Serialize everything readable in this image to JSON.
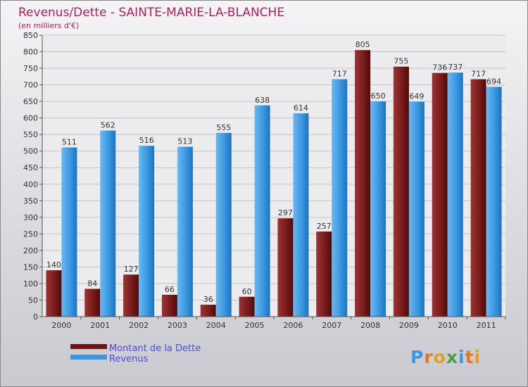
{
  "chart_data": {
    "type": "bar",
    "title": "Revenus/Dette - SAINTE-MARIE-LA-BLANCHE",
    "subtitle": "(en milliers d'€)",
    "categories": [
      "2000",
      "2001",
      "2002",
      "2003",
      "2004",
      "2005",
      "2006",
      "2007",
      "2008",
      "2009",
      "2010",
      "2011"
    ],
    "series": [
      {
        "name": "Montant de la Dette",
        "values": [
          140,
          84,
          127,
          66,
          36,
          60,
          297,
          257,
          805,
          755,
          736,
          717
        ],
        "color": "#7a1c1c"
      },
      {
        "name": "Revenus",
        "values": [
          511,
          562,
          516,
          513,
          555,
          638,
          614,
          717,
          650,
          649,
          737,
          694
        ],
        "color": "#3a97e0"
      }
    ],
    "ylim": [
      0,
      850
    ],
    "yticks": [
      0,
      50,
      100,
      150,
      200,
      250,
      300,
      350,
      400,
      450,
      500,
      550,
      600,
      650,
      700,
      750,
      800,
      850
    ],
    "grid": true,
    "legend_position": "bottom-left"
  },
  "branding": {
    "logo_text": "Proxiti",
    "title_color": "#b0205a",
    "legend_text_color": "#4a4ae0"
  }
}
